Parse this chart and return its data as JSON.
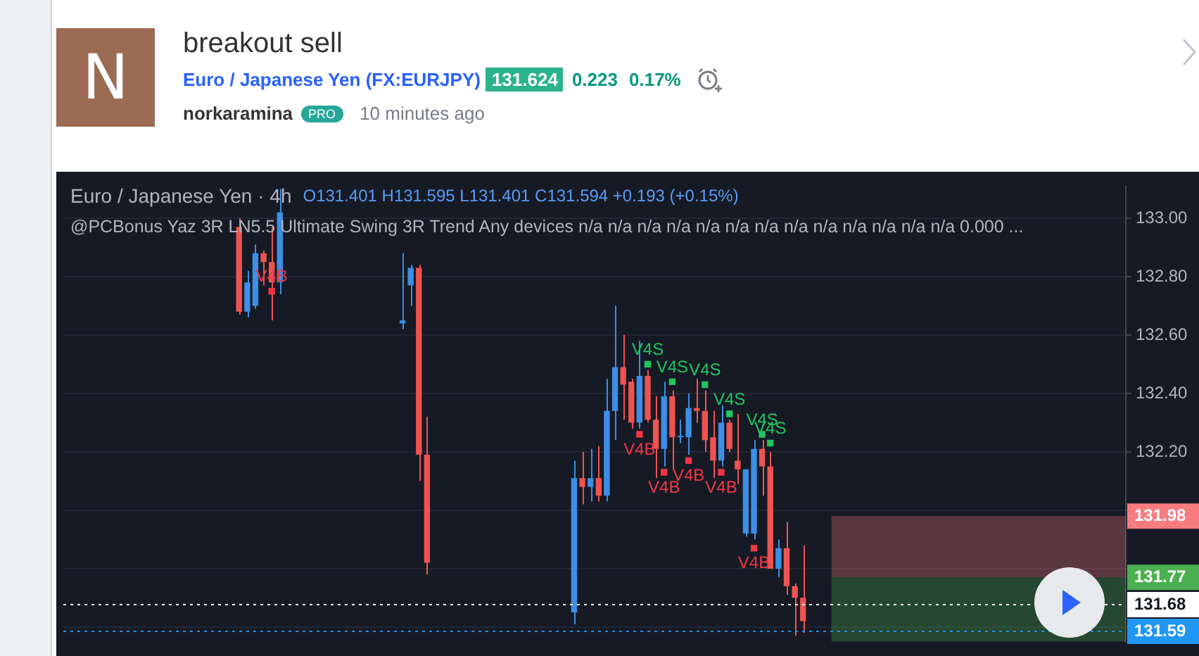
{
  "chart_data": {
    "type": "candlestick",
    "title": "breakout sell",
    "subtitle": "Euro / Japanese Yen (FX:EURJPY)",
    "annotations": [
      "131.624",
      "0.223",
      "0.17%",
      "norkaramina",
      "PRO",
      "10 minutes ago",
      "N",
      "Euro / Japanese Yen · 4h",
      "O131.401 H131.595 L131.401 C131.594 +0.193 (+0.15%)",
      "@PCBonus Yaz 3R LN5.5 Ultimate Swing 3R Trend Any devices  n/a n/a n/a n/a n/a n/a n/a n/a n/a n/a n/a n/a n/a 0.000 ..."
    ],
    "categories": [
      null,
      null,
      null,
      null,
      null,
      null,
      null,
      null,
      null,
      null,
      null,
      null,
      null,
      null,
      null,
      null,
      null,
      null,
      null,
      null,
      null,
      null,
      null,
      null,
      null,
      null,
      null,
      null,
      null,
      null,
      null,
      null,
      null,
      null,
      null,
      null,
      null,
      null,
      null,
      null,
      null,
      null,
      null,
      null,
      null,
      null,
      null,
      null,
      null,
      null,
      null,
      null,
      null,
      null,
      null,
      null,
      null,
      null,
      null,
      null,
      null,
      null,
      null,
      null,
      null,
      null,
      null,
      null,
      null,
      null,
      null,
      null,
      null,
      null,
      null,
      null,
      null,
      null,
      null,
      null,
      null,
      null,
      null,
      null,
      null,
      null,
      null,
      null,
      null,
      null,
      null,
      null,
      null,
      null,
      null,
      null,
      null,
      null,
      null,
      null,
      null,
      null,
      null,
      null,
      null,
      null,
      null,
      null,
      null,
      null,
      null,
      null,
      null,
      null,
      null,
      null,
      null,
      null,
      null,
      null,
      null,
      null,
      null,
      null,
      null,
      null,
      null,
      null,
      null,
      null
    ],
    "ohlc": [
      null,
      null,
      null,
      null,
      null,
      null,
      null,
      null,
      null,
      null,
      null,
      null,
      null,
      null,
      null,
      null,
      null,
      null,
      null,
      null,
      null,
      [
        132.97,
        133.0,
        132.67,
        132.68
      ],
      [
        132.68,
        132.82,
        132.66,
        132.78
      ],
      [
        132.7,
        132.91,
        132.69,
        132.88
      ],
      [
        132.88,
        132.89,
        132.77,
        132.85
      ],
      [
        132.85,
        132.97,
        132.65,
        132.78
      ],
      [
        132.78,
        133.1,
        132.74,
        133.02
      ],
      null,
      null,
      null,
      null,
      null,
      null,
      null,
      null,
      null,
      null,
      null,
      null,
      null,
      null,
      [
        132.64,
        132.88,
        132.62,
        132.65
      ],
      [
        132.77,
        132.84,
        132.7,
        132.83
      ],
      [
        132.83,
        132.84,
        132.1,
        132.19
      ],
      [
        132.19,
        132.32,
        131.78,
        131.82
      ],
      null,
      null,
      null,
      null,
      null,
      null,
      null,
      null,
      null,
      null,
      null,
      null,
      null,
      null,
      null,
      null,
      null,
      [
        131.65,
        132.17,
        131.61,
        132.11
      ],
      [
        132.11,
        132.2,
        132.02,
        132.08
      ],
      [
        132.08,
        132.21,
        132.03,
        132.11
      ],
      [
        132.11,
        132.22,
        132.03,
        132.05
      ],
      [
        132.05,
        132.45,
        132.03,
        132.34
      ],
      [
        132.34,
        132.7,
        132.24,
        132.49
      ],
      [
        132.49,
        132.6,
        132.31,
        132.43
      ],
      [
        132.44,
        132.45,
        132.28,
        132.3
      ],
      [
        132.3,
        132.58,
        132.28,
        132.46
      ],
      [
        132.46,
        132.48,
        132.3,
        132.31
      ],
      [
        132.31,
        132.39,
        132.11,
        132.21
      ],
      [
        132.21,
        132.44,
        132.15,
        132.39
      ],
      [
        132.39,
        132.41,
        132.14,
        132.25
      ],
      [
        132.25,
        132.31,
        132.23,
        132.25
      ],
      [
        132.25,
        132.4,
        132.19,
        132.35
      ],
      [
        132.35,
        132.45,
        132.3,
        132.34
      ],
      [
        132.34,
        132.41,
        132.2,
        132.24
      ],
      [
        132.25,
        132.34,
        132.11,
        132.17
      ],
      [
        132.17,
        132.36,
        132.15,
        132.3
      ],
      [
        132.3,
        132.31,
        132.2,
        132.21
      ],
      [
        132.17,
        132.33,
        132.09,
        132.14
      ],
      [
        131.92,
        132.14,
        131.91,
        132.14
      ],
      [
        131.92,
        132.24,
        131.9,
        132.21
      ],
      [
        132.21,
        132.24,
        132.05,
        132.15
      ],
      [
        132.15,
        132.2,
        131.8,
        131.8
      ],
      [
        131.8,
        131.9,
        131.77,
        131.87
      ],
      [
        131.87,
        131.96,
        131.71,
        131.74
      ],
      [
        131.74,
        131.75,
        131.57,
        131.7
      ],
      [
        131.7,
        131.88,
        131.58,
        131.62
      ],
      null,
      null,
      null,
      null,
      null,
      null,
      null,
      null,
      null,
      null,
      null,
      null,
      null,
      null,
      null,
      null,
      null,
      null,
      null,
      null,
      null,
      null,
      null,
      null,
      null,
      null,
      null,
      null,
      null,
      null,
      null,
      null,
      null,
      null,
      null,
      null,
      null,
      null,
      null
    ],
    "colors": [
      null,
      null,
      null,
      null,
      null,
      null,
      null,
      null,
      null,
      null,
      null,
      null,
      null,
      null,
      null,
      null,
      null,
      null,
      null,
      null,
      null,
      "#ef5350",
      "#3d8ee6",
      "#3d8ee6",
      "#ef5350",
      "#ef5350",
      "#3d8ee6",
      null,
      null,
      null,
      null,
      null,
      null,
      null,
      null,
      null,
      null,
      null,
      null,
      null,
      null,
      "#3d8ee6",
      "#3d8ee6",
      "#ef5350",
      "#ef5350",
      null,
      null,
      null,
      null,
      null,
      null,
      null,
      null,
      null,
      null,
      null,
      null,
      null,
      null,
      null,
      null,
      null,
      "#3d8ee6",
      "#ef5350",
      "#3d8ee6",
      "#ef5350",
      "#3d8ee6",
      "#3d8ee6",
      "#ef5350",
      "#ef5350",
      "#3d8ee6",
      "#ef5350",
      "#ef5350",
      "#3d8ee6",
      "#ef5350",
      "#3d8ee6",
      "#3d8ee6",
      "#ef5350",
      "#ef5350",
      "#ef5350",
      "#3d8ee6",
      "#ef5350",
      "#ef5350",
      "#3d8ee6",
      "#3d8ee6",
      "#ef5350",
      "#ef5350",
      "#3d8ee6",
      "#ef5350",
      "#ef5350",
      "#ef5350",
      null,
      null,
      null,
      null,
      null,
      null,
      null,
      null,
      null,
      null,
      null,
      null,
      null,
      null,
      null,
      null,
      null,
      null,
      null,
      null,
      null,
      null,
      null,
      null,
      null,
      null,
      null,
      null,
      null,
      null,
      null,
      null,
      null,
      null,
      null,
      null,
      null,
      null,
      null
    ],
    "series": [
      {
        "type": "scatter",
        "name": "V4B",
        "color": "#f23645",
        "values": [
          null,
          null,
          null,
          null,
          null,
          null,
          null,
          null,
          null,
          null,
          null,
          null,
          null,
          null,
          null,
          null,
          null,
          null,
          null,
          null,
          null,
          null,
          null,
          null,
          null,
          132.75,
          null,
          null,
          null,
          null,
          null,
          null,
          null,
          null,
          null,
          null,
          null,
          null,
          null,
          null,
          null,
          null,
          null,
          null,
          null,
          null,
          null,
          null,
          null,
          null,
          null,
          null,
          null,
          null,
          null,
          null,
          null,
          null,
          null,
          null,
          null,
          null,
          null,
          null,
          null,
          null,
          null,
          null,
          null,
          null,
          132.26,
          null,
          null,
          132.13,
          null,
          null,
          132.17,
          null,
          null,
          null,
          132.13,
          null,
          null,
          null,
          131.87,
          null,
          null,
          null,
          null,
          null,
          null,
          null,
          null,
          null,
          null,
          null,
          null,
          null,
          null,
          null,
          null,
          null,
          null,
          null,
          null,
          null,
          null,
          null,
          null,
          null,
          null,
          null,
          null,
          null,
          null,
          null,
          null,
          null,
          null,
          null,
          null,
          null,
          null,
          null,
          null,
          null,
          null,
          null,
          null,
          null
        ]
      },
      {
        "type": "scatter",
        "name": "V4S",
        "color": "#22c55e",
        "values": [
          null,
          null,
          null,
          null,
          null,
          null,
          null,
          null,
          null,
          null,
          null,
          null,
          null,
          null,
          null,
          null,
          null,
          null,
          null,
          null,
          null,
          null,
          null,
          null,
          null,
          null,
          null,
          null,
          null,
          null,
          null,
          null,
          null,
          null,
          null,
          null,
          null,
          null,
          null,
          null,
          null,
          null,
          null,
          null,
          null,
          null,
          null,
          null,
          null,
          null,
          null,
          null,
          null,
          null,
          null,
          null,
          null,
          null,
          null,
          null,
          null,
          null,
          null,
          null,
          null,
          null,
          null,
          null,
          null,
          null,
          null,
          132.5,
          null,
          null,
          132.44,
          null,
          null,
          null,
          132.43,
          null,
          null,
          132.33,
          null,
          null,
          null,
          132.26,
          132.23,
          null,
          null,
          null,
          null,
          null,
          null,
          null,
          null,
          null,
          null,
          null,
          null,
          null,
          null,
          null,
          null,
          null,
          null,
          null,
          null,
          null,
          null,
          null,
          null,
          null,
          null,
          null,
          null,
          null,
          null,
          null,
          null,
          null,
          null,
          null,
          null,
          null,
          null,
          null,
          null,
          null,
          null,
          null
        ]
      }
    ],
    "ylim": [
      131.55,
      133.11
    ],
    "yticks": [
      {
        "value": 133,
        "label": "133.00"
      },
      {
        "value": 132.8,
        "label": "132.80"
      },
      {
        "value": 132.6,
        "label": "132.60"
      },
      {
        "value": 132.4,
        "label": "132.40"
      },
      {
        "value": 132.2,
        "label": "132.20"
      },
      {
        "value": 132,
        "label": null
      },
      {
        "value": 131.8,
        "label": null
      },
      {
        "value": 131.6,
        "label": null
      }
    ],
    "bands": [
      {
        "axis": "y",
        "from": 131.77,
        "to": 131.98,
        "label": "131.98",
        "color": "#f77c80"
      },
      {
        "axis": "y",
        "from": 131.55,
        "to": 131.77,
        "label": "131.77",
        "color": "#4caf50"
      }
    ],
    "ref_lines": [
      {
        "axis": "y",
        "value": 131.68,
        "label": "131.68",
        "color": "#ffffff",
        "line_style": "dotted"
      },
      {
        "axis": "y",
        "value": 131.59,
        "label": "131.59",
        "color": "#2196f3",
        "line_style": "dotted"
      }
    ],
    "grid": "y",
    "legend": false,
    "tick_labels": "y",
    "marker": "square"
  }
}
